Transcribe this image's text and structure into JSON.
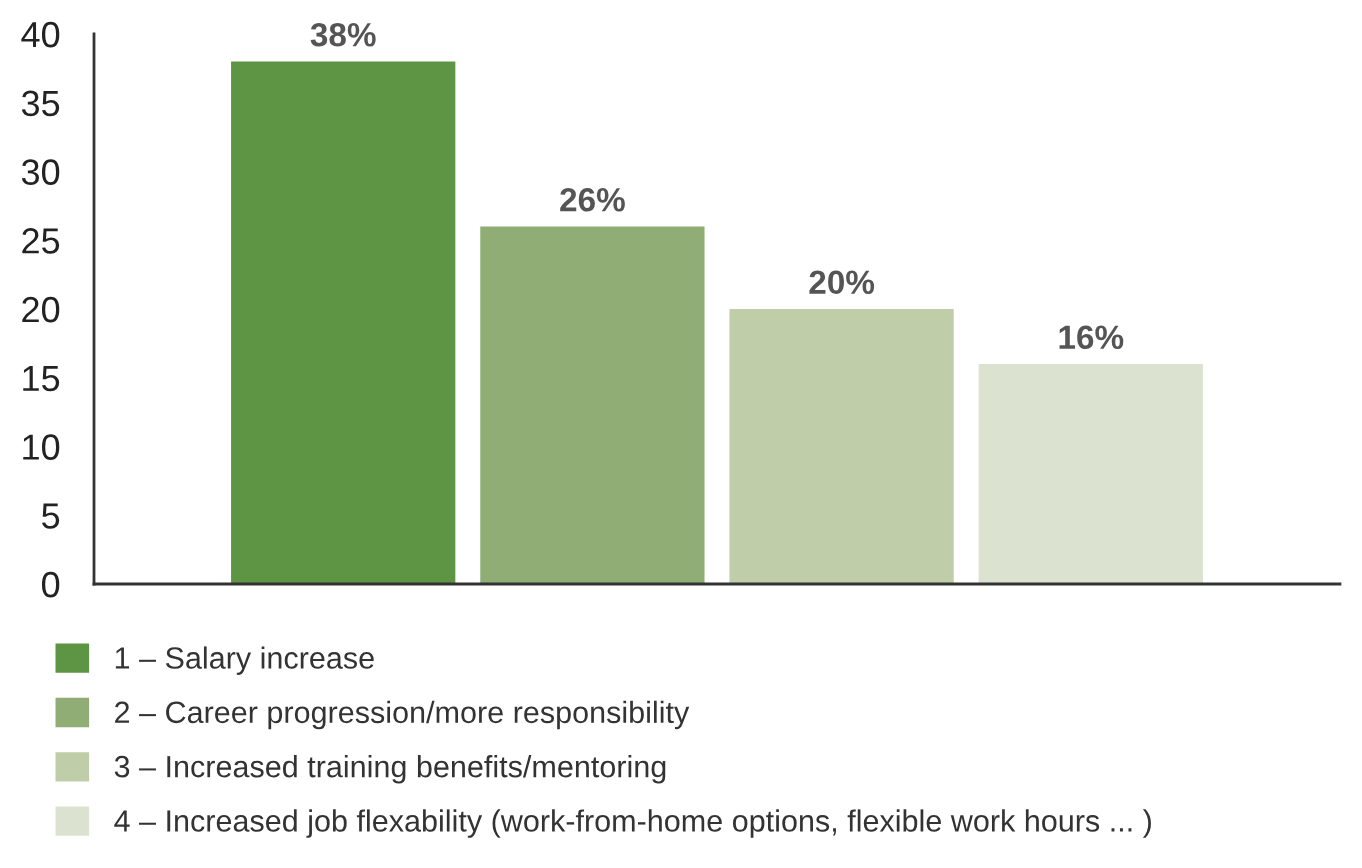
{
  "chart_data": {
    "type": "bar",
    "categories": [
      null,
      null,
      null,
      null
    ],
    "series": [
      {
        "name": "1 – Salary increase",
        "color": "#5e9545",
        "values": [
          38,
          null,
          null,
          null
        ],
        "value_labels": [
          "38%",
          null,
          null,
          null
        ]
      },
      {
        "name": "2 – Career progression/more responsibility",
        "color": "#8fad74",
        "values": [
          null,
          26,
          null,
          null
        ],
        "value_labels": [
          null,
          "26%",
          null,
          null
        ]
      },
      {
        "name": "3 – Increased training benefits/mentoring",
        "color": "#bfcda8",
        "values": [
          null,
          null,
          20,
          null
        ],
        "value_labels": [
          null,
          null,
          "20%",
          null
        ]
      },
      {
        "name": "4 – Increased job flexability (work-from-home options, flexible work hours ... )",
        "color": "#dbe3d0",
        "values": [
          null,
          null,
          null,
          16
        ],
        "value_labels": [
          null,
          null,
          null,
          "16%"
        ]
      }
    ],
    "ylim": [
      0,
      40
    ],
    "yticks": [
      0,
      5,
      10,
      15,
      20,
      25,
      30,
      35,
      40
    ],
    "grid": false,
    "legend": "bottom"
  }
}
